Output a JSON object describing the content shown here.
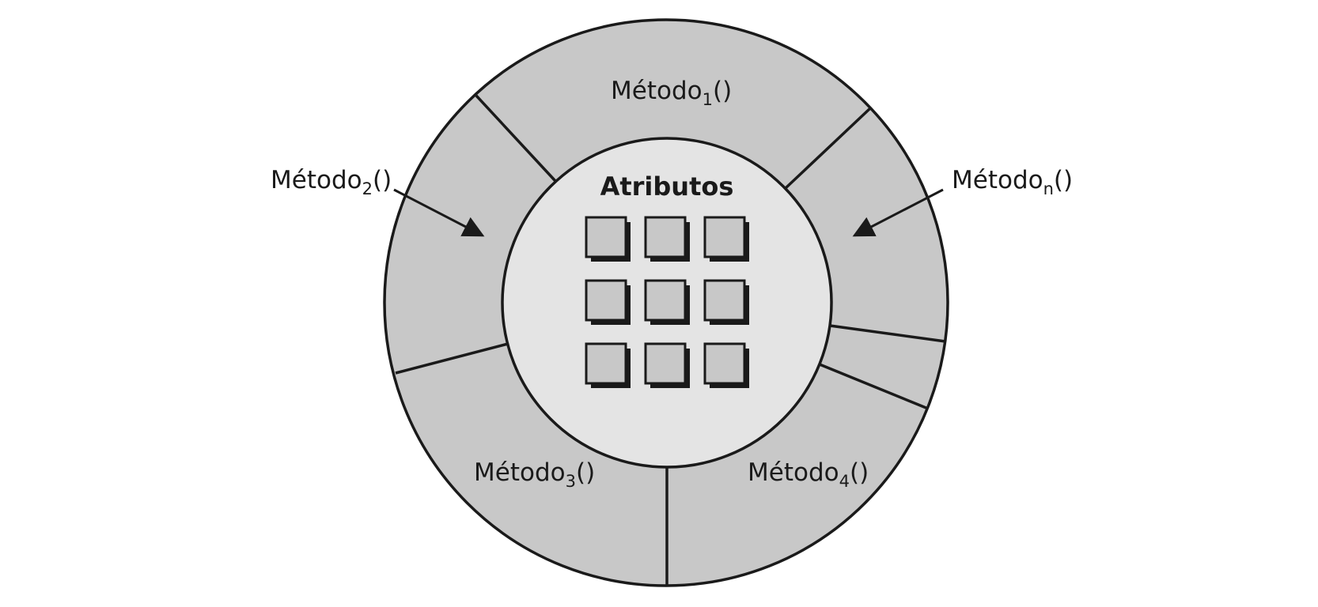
{
  "center": {
    "title": "Atributos",
    "attribute_count": 9
  },
  "methods": [
    {
      "base": "Método",
      "subscript": "1",
      "suffix": "()"
    },
    {
      "base": "Método",
      "subscript": "2",
      "suffix": "()"
    },
    {
      "base": "Método",
      "subscript": "3",
      "suffix": "()"
    },
    {
      "base": "Método",
      "subscript": "4",
      "suffix": "()"
    },
    {
      "base": "Método",
      "subscript": "n",
      "suffix": "()"
    }
  ],
  "colors": {
    "outer_ring": "#c8c8c8",
    "inner_core": "#e4e4e4",
    "attribute_box": "#c8c8c8",
    "stroke": "#1a1a1a",
    "background": "#ffffff"
  }
}
